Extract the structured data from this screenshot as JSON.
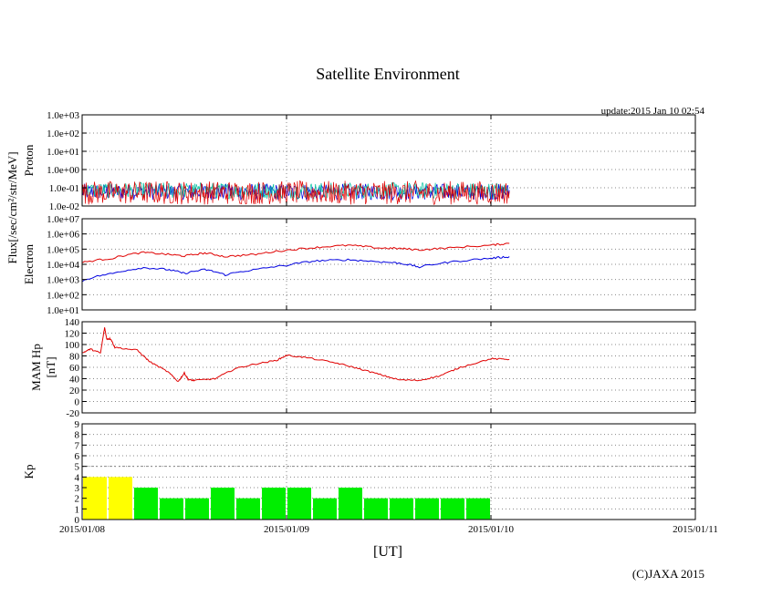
{
  "title": "Satellite Environment",
  "update": "update:2015 Jan 10 02:54",
  "copyright": "(C)JAXA 2015",
  "xlabel": "[UT]",
  "flux_label": "Flux[/sec/cm²/str/MeV]",
  "x_ticks": [
    "2015/01/08",
    "2015/01/09",
    "2015/01/10",
    "2015/01/11"
  ],
  "colors": {
    "red": "#e00000",
    "blue": "#0000e0",
    "green": "#00c0a0",
    "yellow": "#ffff00",
    "kp_green": "#00ee00",
    "grid": "#888888"
  },
  "chart_data": [
    {
      "id": "proton",
      "type": "line",
      "ylabel": "Proton",
      "yscale": "log",
      "ylim": [
        0.01,
        1000
      ],
      "y_ticks": [
        "1.0e-02",
        "1.0e-01",
        "1.0e+00",
        "1.0e+01",
        "1.0e+02",
        "1.0e+03"
      ],
      "xlim_days": [
        0,
        3
      ],
      "series": [
        {
          "name": "proton-low",
          "color": "blue",
          "range_days": [
            0,
            2.09
          ],
          "approx_level": 0.06
        },
        {
          "name": "proton-mid",
          "color": "green",
          "range_days": [
            0,
            2.09
          ],
          "approx_level": 0.07
        },
        {
          "name": "proton-high",
          "color": "red",
          "range_days": [
            0,
            2.09
          ],
          "approx_level": 0.012
        }
      ]
    },
    {
      "id": "electron",
      "type": "line",
      "ylabel": "Electron",
      "yscale": "log",
      "ylim": [
        10,
        10000000
      ],
      "y_ticks": [
        "1.0e+01",
        "1.0e+02",
        "1.0e+03",
        "1.0e+04",
        "1.0e+05",
        "1.0e+06",
        "1.0e+07"
      ],
      "xlim_days": [
        0,
        3
      ],
      "series": [
        {
          "name": "electron-red",
          "color": "red",
          "x": [
            0,
            0.15,
            0.3,
            0.42,
            0.5,
            0.6,
            0.7,
            0.85,
            1.0,
            1.15,
            1.3,
            1.45,
            1.55,
            1.65,
            1.8,
            2.0,
            2.09
          ],
          "y": [
            13000,
            25000,
            60000,
            45000,
            35000,
            55000,
            32000,
            45000,
            85000,
            130000,
            180000,
            120000,
            110000,
            90000,
            120000,
            180000,
            240000
          ]
        },
        {
          "name": "electron-blue",
          "color": "blue",
          "x": [
            0,
            0.15,
            0.3,
            0.42,
            0.5,
            0.6,
            0.7,
            0.85,
            1.0,
            1.15,
            1.3,
            1.45,
            1.55,
            1.65,
            1.8,
            2.0,
            2.09
          ],
          "y": [
            800,
            2500,
            6000,
            4500,
            2500,
            4500,
            2000,
            4500,
            8500,
            17000,
            20000,
            15000,
            12000,
            6500,
            14000,
            25000,
            32000
          ]
        }
      ]
    },
    {
      "id": "mam",
      "type": "line",
      "ylabel": "MAM Hp",
      "ylabel2": "[nT]",
      "ylim": [
        -20,
        140
      ],
      "y_ticks": [
        "-20",
        "0",
        "20",
        "40",
        "60",
        "80",
        "100",
        "120",
        "140"
      ],
      "xlim_days": [
        0,
        3
      ],
      "series": [
        {
          "name": "mam-hp",
          "color": "red",
          "x": [
            0,
            0.04,
            0.09,
            0.11,
            0.12,
            0.14,
            0.16,
            0.27,
            0.33,
            0.42,
            0.47,
            0.5,
            0.52,
            0.55,
            0.65,
            0.75,
            0.85,
            0.95,
            1.0,
            1.1,
            1.25,
            1.35,
            1.45,
            1.55,
            1.65,
            1.75,
            1.85,
            2.0,
            2.09
          ],
          "y": [
            85,
            92,
            85,
            130,
            110,
            110,
            95,
            90,
            70,
            52,
            35,
            50,
            38,
            37,
            40,
            58,
            66,
            72,
            81,
            77,
            67,
            58,
            48,
            38,
            37,
            45,
            60,
            75,
            74
          ]
        }
      ]
    },
    {
      "id": "kp",
      "type": "bar",
      "ylabel": "Kp",
      "ylim": [
        0,
        9
      ],
      "y_ticks": [
        "0",
        "1",
        "2",
        "3",
        "4",
        "5",
        "6",
        "7",
        "8",
        "9"
      ],
      "xlim_days": [
        0,
        3
      ],
      "bar_width_days": 0.125,
      "values": [
        4,
        4,
        3,
        2,
        2,
        3,
        2,
        3,
        3,
        2,
        3,
        2,
        2,
        2,
        2,
        2
      ],
      "threshold_yellow": 4
    }
  ]
}
